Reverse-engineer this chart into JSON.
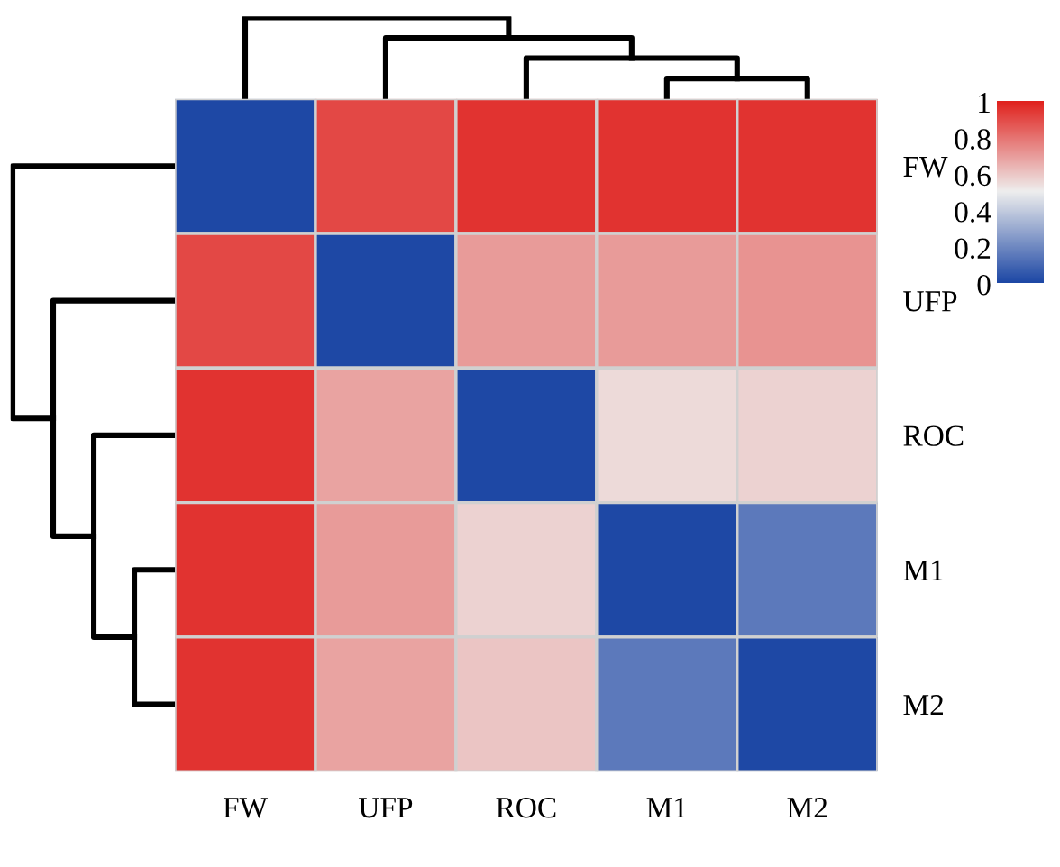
{
  "chart_data": {
    "type": "heatmap",
    "categories": [
      "FW",
      "UFP",
      "ROC",
      "M1",
      "M2"
    ],
    "y_categories": [
      "FW",
      "UFP",
      "ROC",
      "M1",
      "M2"
    ],
    "cells": [
      [
        0,
        0.9,
        0.95,
        0.95,
        0.95
      ],
      [
        0.9,
        0,
        0.7,
        0.7,
        0.72
      ],
      [
        0.95,
        0.68,
        0,
        0.55,
        0.57
      ],
      [
        0.95,
        0.7,
        0.57,
        0,
        0.15
      ],
      [
        0.95,
        0.68,
        0.6,
        0.15,
        0
      ]
    ],
    "colors": [
      "#1e48a5",
      "#eeeeee",
      "#e0201c"
    ],
    "clim": [
      0,
      1
    ],
    "cticks": [
      0,
      0.2,
      0.4,
      0.6,
      0.8,
      1
    ]
  }
}
